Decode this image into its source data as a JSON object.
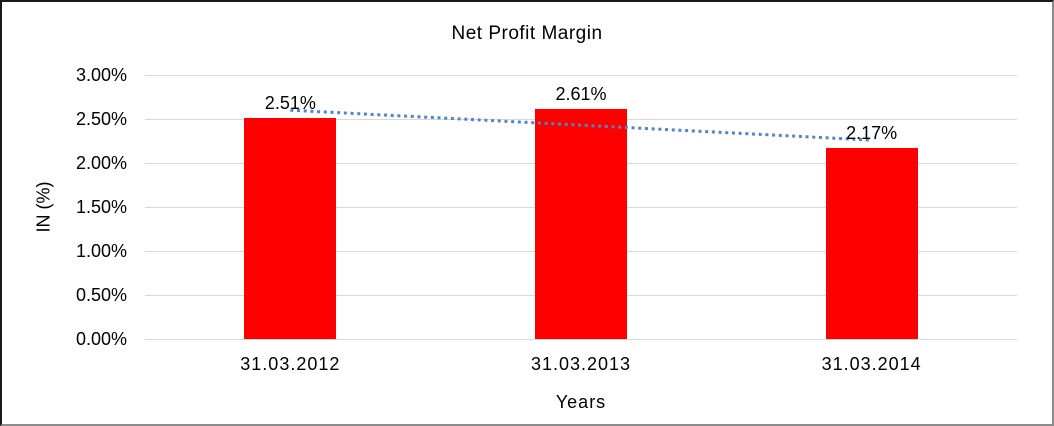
{
  "chart_data": {
    "type": "bar",
    "title": "Net Profit Margin",
    "xlabel": "Years",
    "ylabel": "IN (%)",
    "categories": [
      "31.03.2012",
      "31.03.2013",
      "31.03.2014"
    ],
    "values": [
      2.51,
      2.61,
      2.17
    ],
    "data_labels": [
      "2.51%",
      "2.61%",
      "2.17%"
    ],
    "ylim": [
      0,
      3
    ],
    "ytick_step": 0.5,
    "yticks": [
      {
        "label": "0.00%",
        "value": 0.0
      },
      {
        "label": "0.50%",
        "value": 0.5
      },
      {
        "label": "1.00%",
        "value": 1.0
      },
      {
        "label": "1.50%",
        "value": 1.5
      },
      {
        "label": "2.00%",
        "value": 2.0
      },
      {
        "label": "2.50%",
        "value": 2.5
      },
      {
        "label": "3.00%",
        "value": 3.0
      }
    ],
    "grid": "horizontal",
    "legend": "none",
    "bar_color": "#ff0000",
    "gridline_color": "#d9d9d9",
    "text_color": "#000000",
    "trendline": {
      "type": "linear",
      "style": "dotted",
      "color": "#4e86c8"
    }
  }
}
